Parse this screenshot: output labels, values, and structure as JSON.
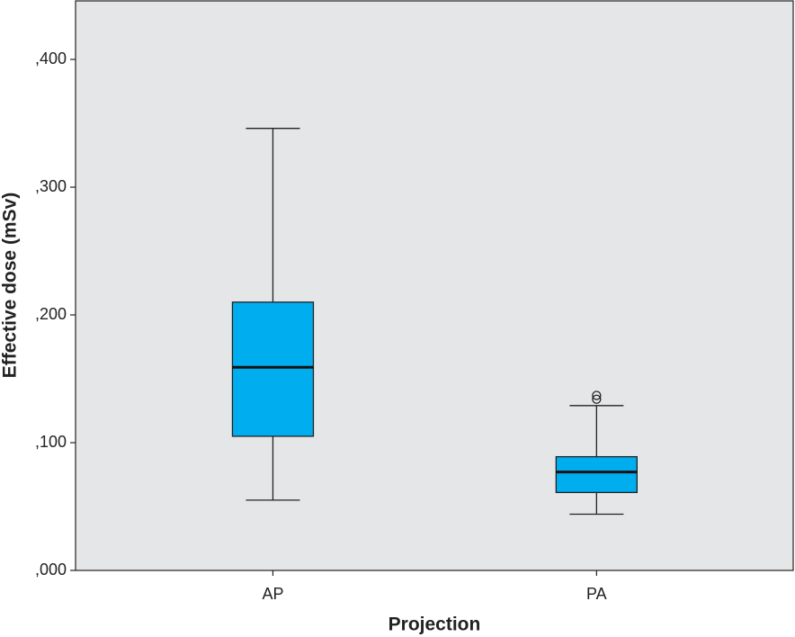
{
  "chart_data": {
    "type": "box",
    "y_label": "Effective dose (mSv)",
    "x_label": "Projection",
    "categories": [
      "AP",
      "PA"
    ],
    "boxes": [
      {
        "min": 0.055,
        "q1": 0.105,
        "median": 0.159,
        "q3": 0.21,
        "max": 0.346,
        "outliers": []
      },
      {
        "min": 0.044,
        "q1": 0.061,
        "median": 0.077,
        "q3": 0.089,
        "max": 0.129,
        "outliers": [
          0.137,
          0.134
        ]
      }
    ],
    "color": "#00aeef",
    "ylim": [
      0,
      0.4465
    ],
    "yticks": [
      {
        "value": 0,
        "label": ",000"
      },
      {
        "value": 0.1,
        "label": ",100"
      },
      {
        "value": 0.2,
        "label": ",200"
      },
      {
        "value": 0.3,
        "label": ",300"
      },
      {
        "value": 0.4,
        "label": ",400"
      }
    ]
  }
}
